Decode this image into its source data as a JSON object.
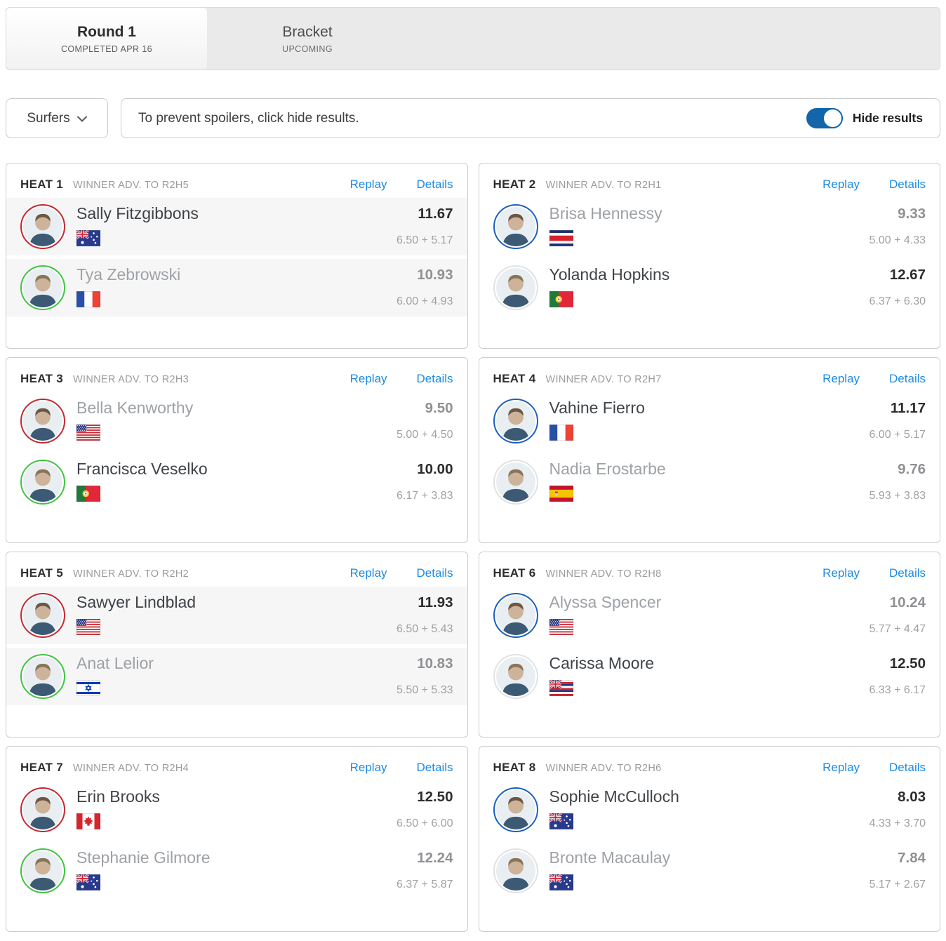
{
  "tabs": [
    {
      "label": "Round 1",
      "sublabel": "COMPLETED APR 16",
      "active": true
    },
    {
      "label": "Bracket",
      "sublabel": "UPCOMING",
      "active": false
    }
  ],
  "filter_bar": {
    "surfers_dropdown_label": "Surfers",
    "spoiler_text": "To prevent spoilers, click hide results.",
    "hide_results_label": "Hide results",
    "toggle_state": "on"
  },
  "colors": {
    "link_blue": "#1c8be4",
    "toggle_blue": "#1266a9",
    "jersey_red": "#c5282f",
    "jersey_green": "#3ec43e",
    "jersey_blue": "#1c5fc0",
    "jersey_white": "#e2e2e2",
    "shaded_row": "#f6f6f6"
  },
  "heats": [
    {
      "title": "HEAT 1",
      "advance": "WINNER ADV. TO R2H5",
      "replay_label": "Replay",
      "details_label": "Details",
      "shaded": true,
      "surfers": [
        {
          "name": "Sally Fitzgibbons",
          "flag": "AUS",
          "jersey": "red",
          "score": "11.67",
          "breakdown": "6.50 + 5.17",
          "winner": true
        },
        {
          "name": "Tya Zebrowski",
          "flag": "FRA",
          "jersey": "green",
          "score": "10.93",
          "breakdown": "6.00 + 4.93",
          "winner": false
        }
      ]
    },
    {
      "title": "HEAT 2",
      "advance": "WINNER ADV. TO R2H1",
      "replay_label": "Replay",
      "details_label": "Details",
      "shaded": false,
      "surfers": [
        {
          "name": "Brisa Hennessy",
          "flag": "CRC",
          "jersey": "blue",
          "score": "9.33",
          "breakdown": "5.00 + 4.33",
          "winner": false
        },
        {
          "name": "Yolanda Hopkins",
          "flag": "POR",
          "jersey": "white",
          "score": "12.67",
          "breakdown": "6.37 + 6.30",
          "winner": true
        }
      ]
    },
    {
      "title": "HEAT 3",
      "advance": "WINNER ADV. TO R2H3",
      "replay_label": "Replay",
      "details_label": "Details",
      "shaded": false,
      "surfers": [
        {
          "name": "Bella Kenworthy",
          "flag": "USA",
          "jersey": "red",
          "score": "9.50",
          "breakdown": "5.00 + 4.50",
          "winner": false
        },
        {
          "name": "Francisca Veselko",
          "flag": "POR",
          "jersey": "green",
          "score": "10.00",
          "breakdown": "6.17 + 3.83",
          "winner": true
        }
      ]
    },
    {
      "title": "HEAT 4",
      "advance": "WINNER ADV. TO R2H7",
      "replay_label": "Replay",
      "details_label": "Details",
      "shaded": false,
      "surfers": [
        {
          "name": "Vahine Fierro",
          "flag": "FRA",
          "jersey": "blue",
          "score": "11.17",
          "breakdown": "6.00 + 5.17",
          "winner": true
        },
        {
          "name": "Nadia Erostarbe",
          "flag": "ESP",
          "jersey": "white",
          "score": "9.76",
          "breakdown": "5.93 + 3.83",
          "winner": false
        }
      ]
    },
    {
      "title": "HEAT 5",
      "advance": "WINNER ADV. TO R2H2",
      "replay_label": "Replay",
      "details_label": "Details",
      "shaded": true,
      "surfers": [
        {
          "name": "Sawyer Lindblad",
          "flag": "USA",
          "jersey": "red",
          "score": "11.93",
          "breakdown": "6.50 + 5.43",
          "winner": true
        },
        {
          "name": "Anat Lelior",
          "flag": "ISR",
          "jersey": "green",
          "score": "10.83",
          "breakdown": "5.50 + 5.33",
          "winner": false
        }
      ]
    },
    {
      "title": "HEAT 6",
      "advance": "WINNER ADV. TO R2H8",
      "replay_label": "Replay",
      "details_label": "Details",
      "shaded": false,
      "surfers": [
        {
          "name": "Alyssa Spencer",
          "flag": "USA",
          "jersey": "blue",
          "score": "10.24",
          "breakdown": "5.77 + 4.47",
          "winner": false
        },
        {
          "name": "Carissa Moore",
          "flag": "HAW",
          "jersey": "white",
          "score": "12.50",
          "breakdown": "6.33 + 6.17",
          "winner": true
        }
      ]
    },
    {
      "title": "HEAT 7",
      "advance": "WINNER ADV. TO R2H4",
      "replay_label": "Replay",
      "details_label": "Details",
      "shaded": false,
      "surfers": [
        {
          "name": "Erin Brooks",
          "flag": "CAN",
          "jersey": "red",
          "score": "12.50",
          "breakdown": "6.50 + 6.00",
          "winner": true
        },
        {
          "name": "Stephanie Gilmore",
          "flag": "AUS",
          "jersey": "green",
          "score": "12.24",
          "breakdown": "6.37 + 5.87",
          "winner": false
        }
      ]
    },
    {
      "title": "HEAT 8",
      "advance": "WINNER ADV. TO R2H6",
      "replay_label": "Replay",
      "details_label": "Details",
      "shaded": false,
      "surfers": [
        {
          "name": "Sophie McCulloch",
          "flag": "AUS",
          "jersey": "blue",
          "score": "8.03",
          "breakdown": "4.33 + 3.70",
          "winner": true
        },
        {
          "name": "Bronte Macaulay",
          "flag": "AUS",
          "jersey": "white",
          "score": "7.84",
          "breakdown": "5.17 + 2.67",
          "winner": false
        }
      ]
    }
  ]
}
